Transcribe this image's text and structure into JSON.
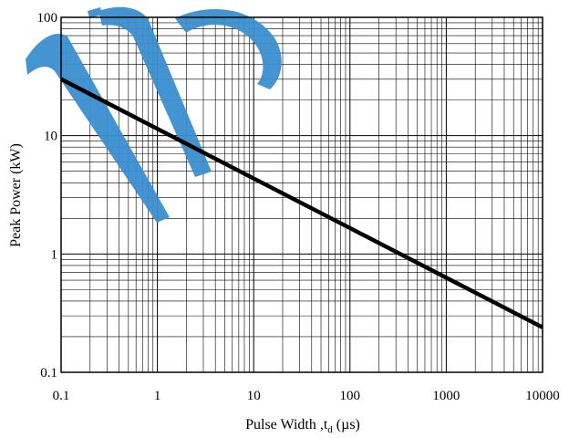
{
  "chart_data": {
    "type": "line",
    "x_scale": "log",
    "y_scale": "log",
    "xlim": [
      0.1,
      10000
    ],
    "ylim": [
      0.1,
      100
    ],
    "x_ticks": [
      "0.1",
      "1",
      "10",
      "100",
      "1000",
      "10000"
    ],
    "y_ticks": [
      "0.1",
      "1",
      "10",
      "100"
    ],
    "xlabel_main": "Pulse Width ,t",
    "xlabel_sub": "d",
    "xlabel_unit": " (µs)",
    "ylabel": "Peak Power (kW)",
    "grid": true,
    "legend": "none",
    "series": [
      {
        "x": [
          0.1,
          10000
        ],
        "y": [
          30,
          0.24
        ]
      }
    ],
    "colors": {
      "line": "#000000",
      "grid": "#000000",
      "watermark": "#3a8fd0"
    }
  }
}
